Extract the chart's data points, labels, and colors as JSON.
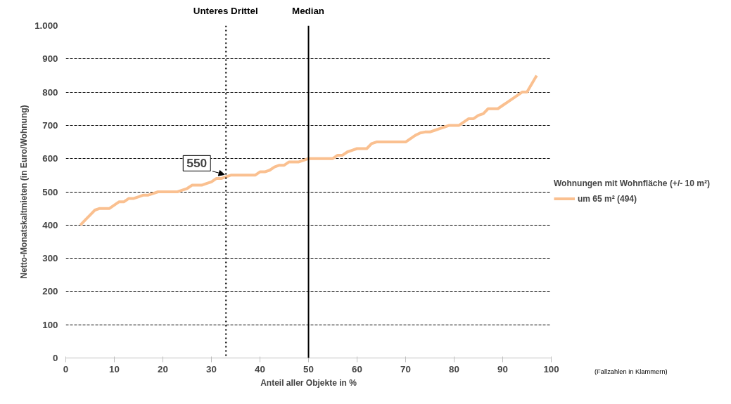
{
  "chart_data": {
    "type": "line",
    "xlabel": "Anteil aller Objekte in %",
    "ylabel": "Netto-Monatskaltmieten (in Euro/Wohnung)",
    "legend_title": "Wohnungen mit Wohnfläche (+/- 10 m²)",
    "legend": "right",
    "grid": "y",
    "line_style": "solid",
    "marker": "none",
    "xlim": [
      0,
      100
    ],
    "xticks": [
      0,
      10,
      20,
      30,
      40,
      50,
      60,
      70,
      80,
      90,
      100
    ],
    "ylim": [
      0,
      1000
    ],
    "yticks": [
      0,
      100,
      200,
      300,
      400,
      500,
      600,
      700,
      800,
      900,
      {
        "value": 1000,
        "label": "1.000"
      }
    ],
    "series": [
      {
        "name": "um 65 m² (494)",
        "color": "#fac090",
        "x": [
          3,
          4,
          5,
          6,
          7,
          9,
          10,
          11,
          12,
          13,
          14,
          15,
          16,
          17,
          18,
          19,
          23,
          24,
          25,
          26,
          28,
          29,
          30,
          31,
          32,
          33,
          34,
          38,
          39,
          40,
          41,
          42,
          43,
          44,
          45,
          46,
          48,
          49,
          50,
          55,
          56,
          57,
          58,
          59,
          60,
          62,
          63,
          64,
          70,
          71,
          72,
          73,
          74,
          75,
          76,
          77,
          78,
          79,
          81,
          82,
          83,
          84,
          85,
          86,
          87,
          89,
          90,
          91,
          92,
          93,
          94,
          95,
          96,
          97
        ],
        "values": [
          400,
          415,
          430,
          445,
          450,
          450,
          460,
          470,
          470,
          480,
          480,
          485,
          490,
          490,
          495,
          500,
          500,
          505,
          510,
          520,
          520,
          525,
          530,
          540,
          540,
          545,
          550,
          550,
          550,
          560,
          560,
          565,
          575,
          580,
          580,
          590,
          590,
          595,
          600,
          600,
          610,
          610,
          620,
          625,
          630,
          630,
          645,
          650,
          650,
          660,
          670,
          677,
          680,
          680,
          685,
          690,
          695,
          700,
          700,
          710,
          720,
          720,
          730,
          735,
          750,
          750,
          760,
          770,
          780,
          790,
          800,
          800,
          825,
          850
        ]
      }
    ],
    "ref_lines": [
      {
        "axis": "x",
        "value": 33,
        "label": "Unteres Drittel",
        "line_style": "dotted",
        "color": "#000000"
      },
      {
        "axis": "x",
        "value": 50,
        "label": "Median",
        "line_style": "solid",
        "color": "#000000"
      }
    ],
    "annotations": [
      {
        "text": "550",
        "x": 33,
        "y": 550
      },
      "(Fallzahlen in Klammern)"
    ]
  }
}
